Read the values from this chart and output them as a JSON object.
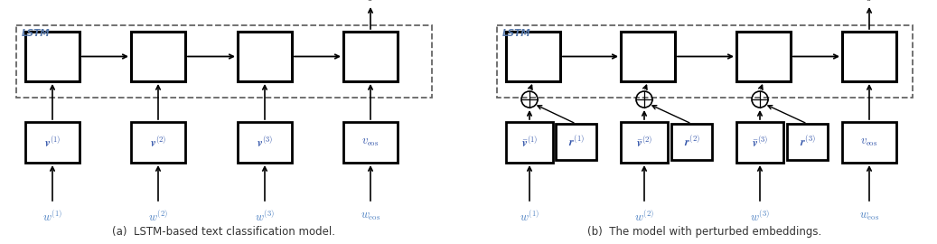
{
  "fig_width": 10.37,
  "fig_height": 2.7,
  "bg_color": "#ffffff",
  "lstm_label_color": "#5577aa",
  "caption_a": "(a)  LSTM-based text classification model.",
  "caption_b": "(b)  The model with perturbed embeddings.",
  "embed_labels_a": [
    "$\\boldsymbol{v}^{(1)}$",
    "$\\boldsymbol{v}^{(2)}$",
    "$\\boldsymbol{v}^{(3)}$",
    "$v_{\\mathrm{eos}}$"
  ],
  "embed_labels_b": [
    "$\\bar{\\boldsymbol{v}}^{(1)}$",
    "$\\bar{\\boldsymbol{v}}^{(2)}$",
    "$\\bar{\\boldsymbol{v}}^{(3)}$",
    "$v_{\\mathrm{eos}}$"
  ],
  "r_labels": [
    "$\\boldsymbol{r}^{(1)}$",
    "$\\boldsymbol{r}^{(2)}$",
    "$\\boldsymbol{r}^{(3)}$"
  ],
  "input_labels": [
    "$w^{(1)}$",
    "$w^{(2)}$",
    "$w^{(3)}$",
    "$w_{\\mathrm{eos}}$"
  ]
}
